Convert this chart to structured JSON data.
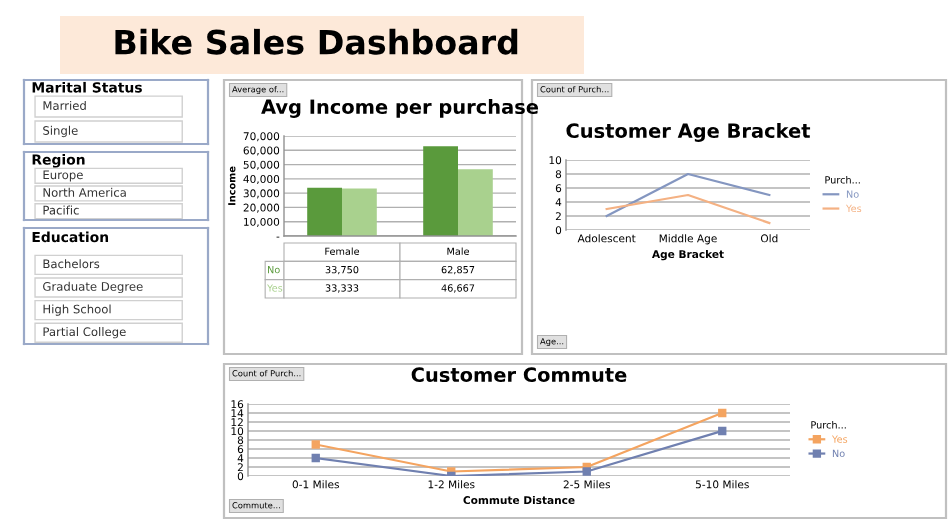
{
  "chart_data": [
    {
      "type": "other",
      "title": "Bike Sales Dashboard"
    },
    {
      "type": "other",
      "title": "Marital Status",
      "annotations": [
        "Married",
        "Single"
      ]
    },
    {
      "type": "other",
      "title": "Region",
      "annotations": [
        "Europe",
        "North America",
        "Pacific"
      ]
    },
    {
      "type": "other",
      "title": "Education",
      "annotations": [
        "Bachelors",
        "Graduate Degree",
        "High School",
        "Partial College"
      ]
    },
    {
      "type": "bar",
      "title": "Avg Income per purchase",
      "ylabel": "Income",
      "categories": [
        "Female",
        "Male"
      ],
      "series": [
        {
          "name": "No",
          "color": "#5a9a3c",
          "values": [
            33750,
            62857
          ],
          "value_labels": [
            "33,750",
            "62,857"
          ]
        },
        {
          "name": "Yes",
          "color": "#a9d18e",
          "values": [
            33333,
            46667
          ],
          "value_labels": [
            "33,333",
            "46,667"
          ]
        }
      ],
      "ylim": [
        0,
        70000
      ],
      "yticks": [
        {
          "value": 0,
          "label": "-"
        },
        {
          "value": 10000,
          "label": "10,000"
        },
        {
          "value": 20000,
          "label": "20,000"
        },
        {
          "value": 30000,
          "label": "30,000"
        },
        {
          "value": 40000,
          "label": "40,000"
        },
        {
          "value": 50000,
          "label": "50,000"
        },
        {
          "value": 60000,
          "label": "60,000"
        },
        {
          "value": 70000,
          "label": "70,000"
        }
      ],
      "grid": "y",
      "annotations": [
        "Average of..."
      ]
    },
    {
      "type": "line",
      "title": "Customer Age Bracket",
      "xlabel": "Age Bracket",
      "legend_title": "Purch...",
      "categories": [
        "Adolescent",
        "Middle Age",
        "Old"
      ],
      "series": [
        {
          "name": "No",
          "color": "#8496c0",
          "values": [
            2,
            8,
            5
          ]
        },
        {
          "name": "Yes",
          "color": "#f4b183",
          "values": [
            3,
            5,
            1
          ]
        }
      ],
      "ylim": [
        0,
        10
      ],
      "yticks": [
        0,
        2,
        4,
        6,
        8,
        10
      ],
      "grid": "y",
      "legend": "right",
      "annotations": [
        "Count of Purch...",
        "Age..."
      ]
    },
    {
      "type": "line",
      "title": "Customer Commute",
      "xlabel": "Commute Distance",
      "legend_title": "Purch...",
      "categories": [
        "0-1 Miles",
        "1-2 Miles",
        "2-5 Miles",
        "5-10 Miles"
      ],
      "series": [
        {
          "name": "Yes",
          "color": "#f4a460",
          "values": [
            7,
            1,
            2,
            14
          ]
        },
        {
          "name": "No",
          "color": "#7080b0",
          "values": [
            4,
            0,
            1,
            10
          ]
        }
      ],
      "ylim": [
        0,
        16
      ],
      "yticks": [
        0,
        2,
        4,
        6,
        8,
        10,
        12,
        14,
        16
      ],
      "grid": "y",
      "legend": "right",
      "marker": "square",
      "annotations": [
        "Count of Purch...",
        "Commute..."
      ]
    }
  ]
}
